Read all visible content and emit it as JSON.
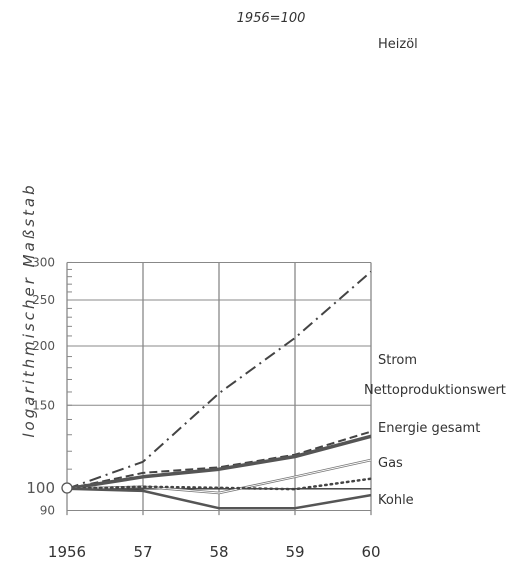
{
  "chart_data": {
    "type": "line",
    "title": "1956=100",
    "ylabel": "logarithmischer Maßstab",
    "yscale": "log",
    "x": [
      "1956",
      "57",
      "58",
      "59",
      "60"
    ],
    "ylim": [
      88,
      300
    ],
    "yticks": [
      90,
      100,
      150,
      200,
      250,
      300
    ],
    "grid": true,
    "series": [
      {
        "name": "Heizöl",
        "values": [
          100,
          114,
          159,
          208,
          287
        ],
        "style": "dashdot",
        "color": "#444444"
      },
      {
        "name": "Strom",
        "values": [
          100,
          108,
          111,
          118,
          132
        ],
        "style": "dashed",
        "color": "#444444"
      },
      {
        "name": "Nettoproduktionswert",
        "values": [
          100,
          106,
          110,
          117,
          129
        ],
        "style": "solid-thick",
        "color": "#555555"
      },
      {
        "name": "Energie gesamt",
        "values": [
          100,
          101,
          98,
          106,
          115
        ],
        "style": "double",
        "color": "#777777"
      },
      {
        "name": "Gas",
        "values": [
          100,
          101,
          100.5,
          99.8,
          105
        ],
        "style": "dotted",
        "color": "#444444"
      },
      {
        "name": "Kohle",
        "values": [
          100,
          99,
          91,
          91,
          97
        ],
        "style": "solid",
        "color": "#555555"
      }
    ],
    "labels": {
      "y100": "100"
    }
  }
}
